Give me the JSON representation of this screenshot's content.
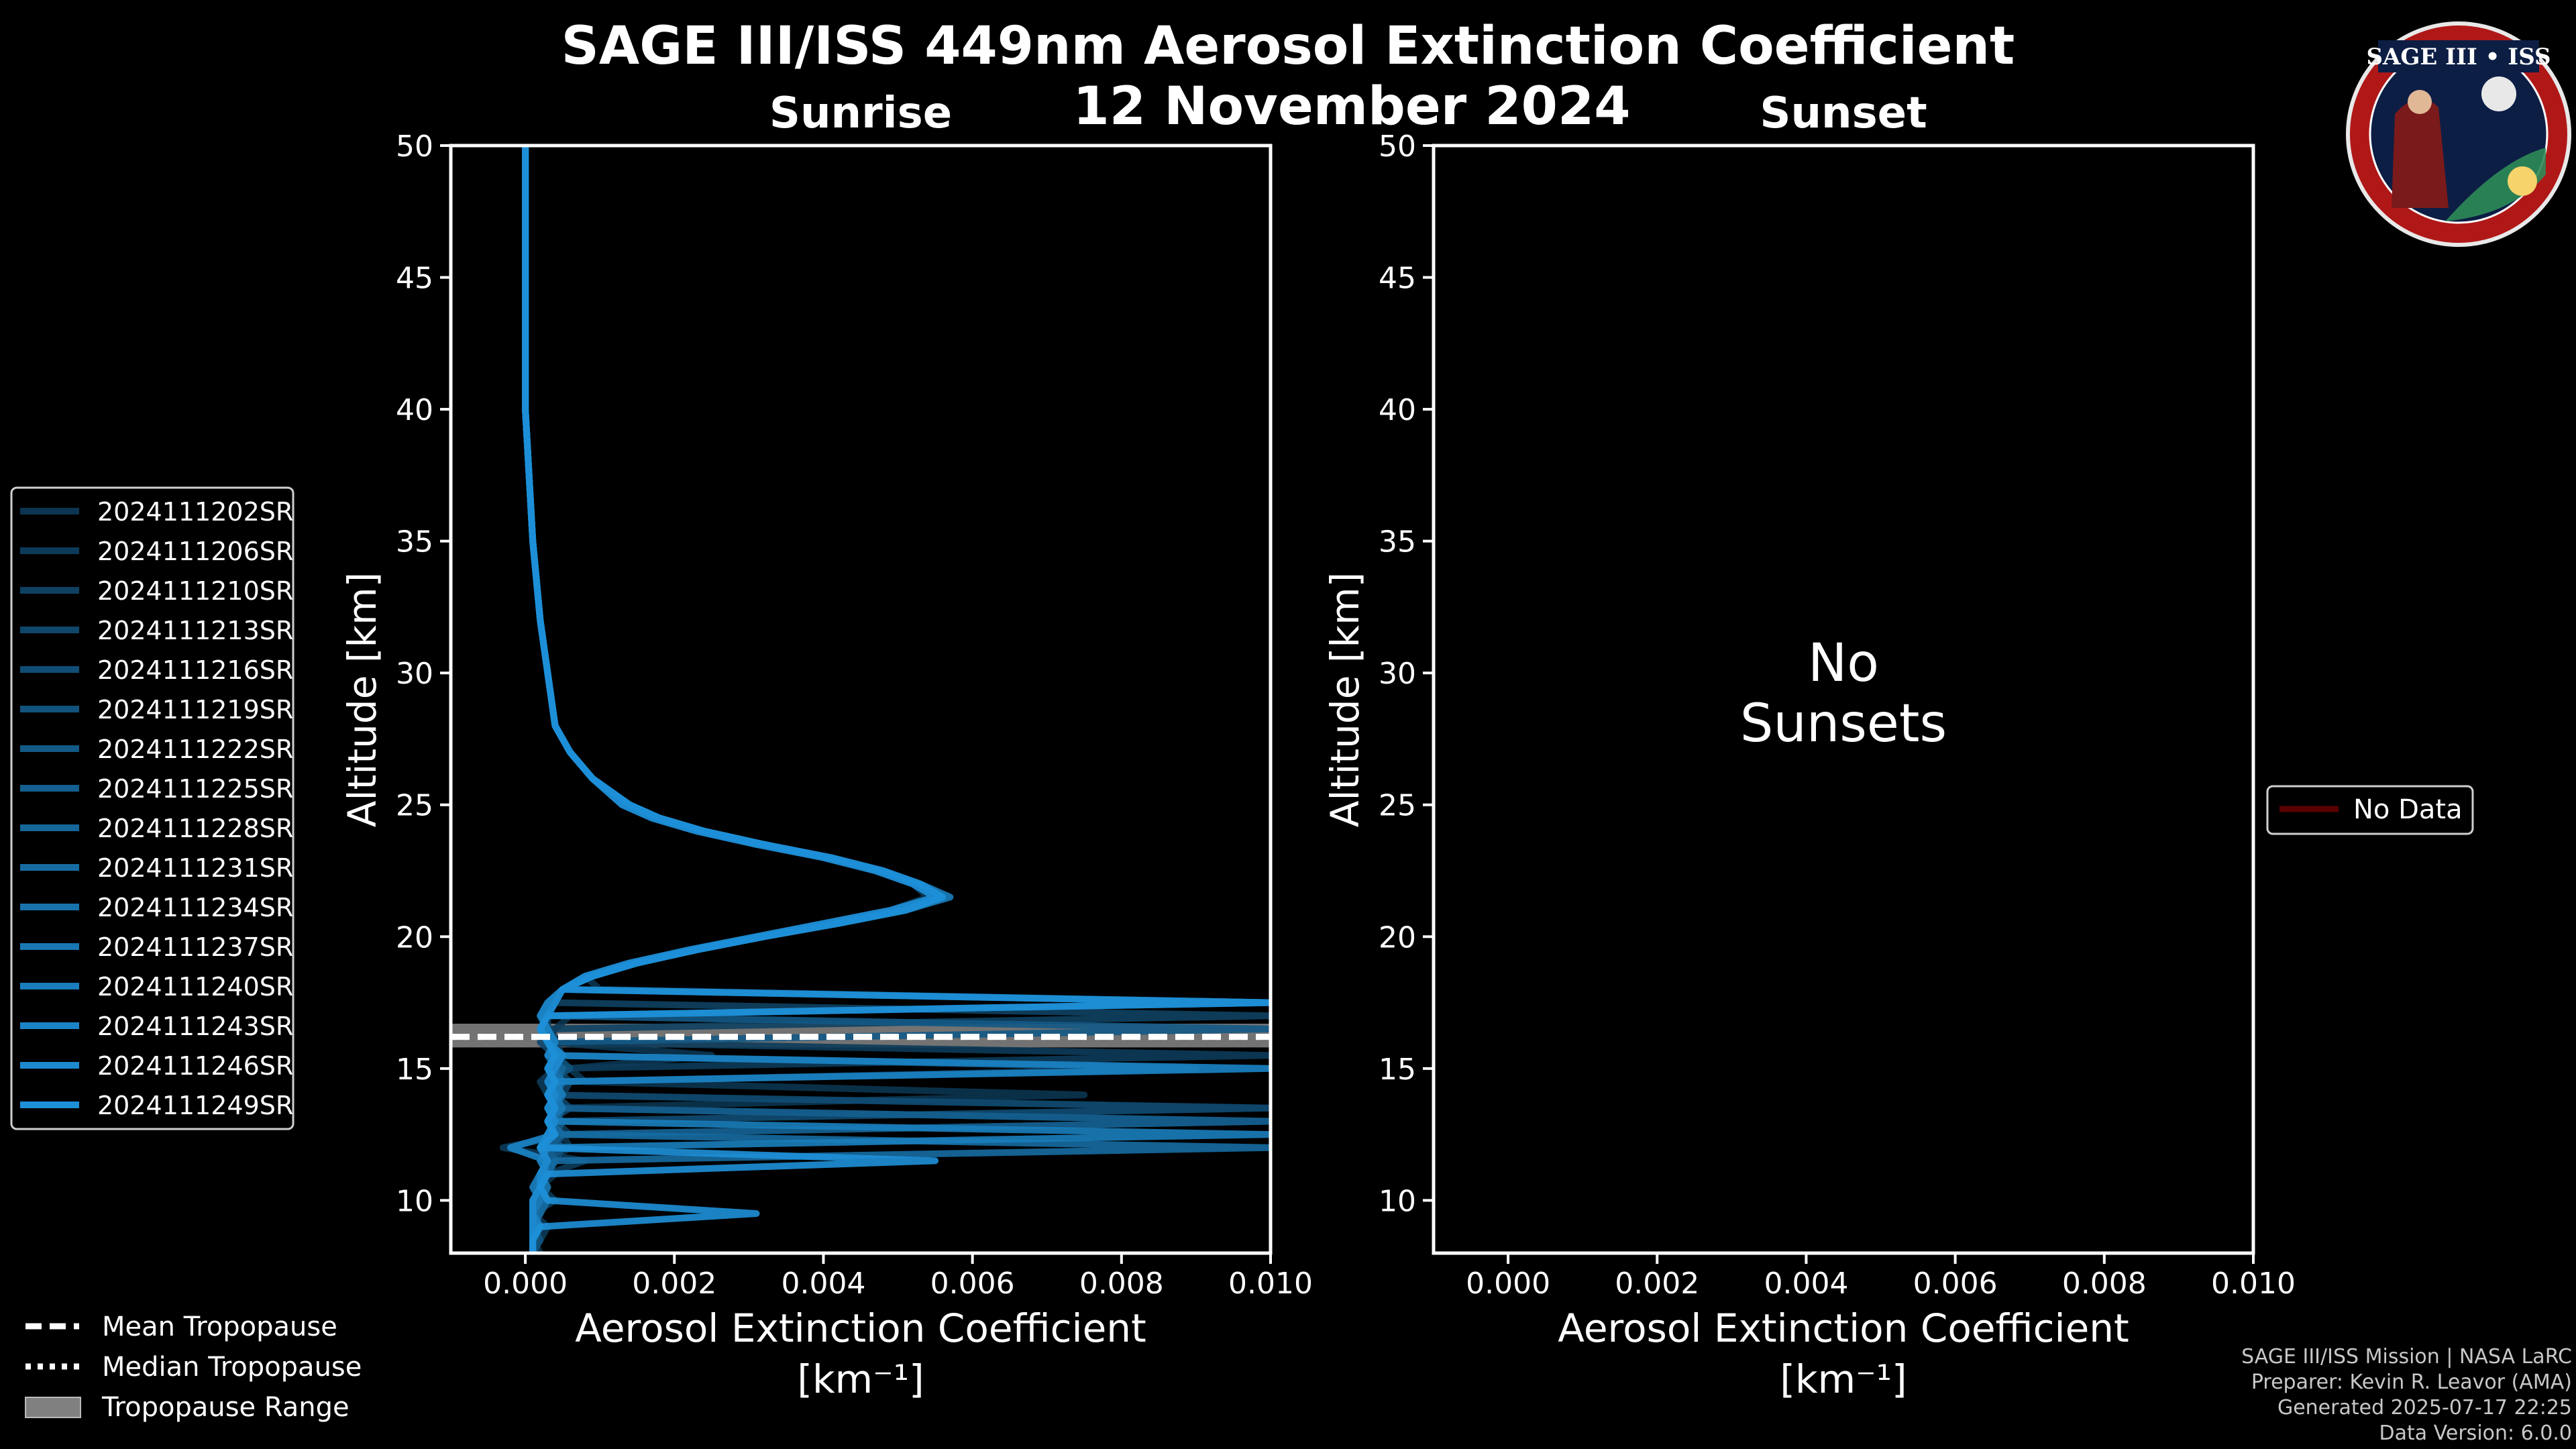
{
  "chart_data": [
    {
      "type": "line",
      "panel": "sunrise",
      "suptitle": "SAGE III/ISS 449nm Aerosol Extinction Coefficient",
      "subtitle": "12 November 2024",
      "title": "Sunrise",
      "xlabel": "Aerosol Extinction Coefficient",
      "xunit": "[km⁻¹]",
      "ylabel": "Altitude [km]",
      "xlim": [
        -0.001,
        0.01
      ],
      "ylim": [
        8,
        50
      ],
      "xticks": [
        "0.000",
        "0.002",
        "0.004",
        "0.006",
        "0.008",
        "0.010"
      ],
      "yticks": [
        "10",
        "15",
        "20",
        "25",
        "30",
        "35",
        "40",
        "45",
        "50"
      ],
      "tropopause": {
        "mean": 16.2,
        "median": 16.2,
        "range": [
          15.8,
          16.7
        ]
      },
      "altitude": [
        50,
        45,
        40,
        35,
        32,
        30,
        28,
        27,
        26,
        25,
        24.5,
        24,
        23.5,
        23,
        22.5,
        22,
        21.5,
        21,
        20.5,
        20,
        19.5,
        19,
        18.5,
        18,
        17.5,
        17,
        16.5,
        16,
        15.5,
        15,
        14.5,
        14,
        13.5,
        13,
        12.5,
        12,
        11.5,
        11,
        10.5,
        10,
        9.5,
        9,
        8.5,
        8
      ],
      "series": [
        {
          "name": "2024111202SR",
          "values": [
            0.0,
            0.0,
            0.0,
            0.0001,
            0.0002,
            0.0003,
            0.0004,
            0.0006,
            0.0009,
            0.0013,
            0.0017,
            0.0023,
            0.0031,
            0.004,
            0.0047,
            0.0052,
            0.0054,
            0.0049,
            0.004,
            0.0031,
            0.0022,
            0.0014,
            0.0008,
            0.001,
            0.01,
            0.0006,
            0.0004,
            0.0003,
            0.0025,
            0.0006,
            0.0008,
            0.0075,
            0.0004,
            0.01,
            0.0005,
            0.0006,
            0.0003,
            0.0004,
            0.0002,
            0.0003,
            0.0001,
            0.0002,
            0.0001,
            0.0002
          ]
        },
        {
          "name": "2024111206SR",
          "values": [
            0.0,
            0.0,
            0.0,
            0.0001,
            0.0002,
            0.0003,
            0.0004,
            0.0006,
            0.0009,
            0.0014,
            0.0018,
            0.0024,
            0.0032,
            0.0041,
            0.0048,
            0.0053,
            0.0056,
            0.005,
            0.0041,
            0.0032,
            0.0023,
            0.0015,
            0.0009,
            0.0005,
            0.0004,
            0.0003,
            0.0002,
            0.0005,
            0.01,
            0.0004,
            0.0002,
            0.0003,
            0.0005,
            0.0004,
            0.0006,
            -0.0003,
            0.0008,
            0.0003,
            0.0002,
            0.0004,
            0.0001,
            0.0003,
            0.0002,
            0.0001
          ]
        },
        {
          "name": "2024111210SR",
          "values": [
            0.0,
            0.0,
            0.0,
            0.0001,
            0.0002,
            0.0003,
            0.0004,
            0.0006,
            0.0009,
            0.0013,
            0.0017,
            0.0023,
            0.0031,
            0.004,
            0.0047,
            0.0052,
            0.0055,
            0.0049,
            0.004,
            0.0031,
            0.0022,
            0.0014,
            0.0008,
            0.0005,
            0.0004,
            0.01,
            0.0003,
            0.0004,
            0.0005,
            0.0004,
            0.0006,
            0.0005,
            0.0003,
            0.0004,
            0.0003,
            0.0002,
            0.0003,
            0.0002,
            0.0001,
            0.0002,
            0.0001,
            0.0001,
            0.0002,
            0.0001
          ]
        },
        {
          "name": "2024111213SR",
          "values": [
            0.0,
            0.0,
            0.0,
            0.0001,
            0.0002,
            0.0003,
            0.0004,
            0.0006,
            0.0009,
            0.0014,
            0.0018,
            0.0024,
            0.0032,
            0.0041,
            0.0048,
            0.0053,
            0.0057,
            0.0051,
            0.0042,
            0.0032,
            0.0023,
            0.0015,
            0.0009,
            0.0005,
            0.0004,
            0.0003,
            0.0003,
            0.0002,
            0.0004,
            0.009,
            0.0005,
            0.0004,
            0.0006,
            0.0003,
            0.0005,
            0.0004,
            0.0003,
            0.0002,
            0.0003,
            0.0002,
            0.0001,
            0.0002,
            0.0001,
            0.0001
          ]
        },
        {
          "name": "2024111216SR",
          "values": [
            0.0,
            0.0,
            0.0,
            0.0001,
            0.0002,
            0.0003,
            0.0004,
            0.0006,
            0.0009,
            0.0013,
            0.0017,
            0.0023,
            0.0031,
            0.004,
            0.0047,
            0.0052,
            0.0055,
            0.005,
            0.0041,
            0.0031,
            0.0022,
            0.0015,
            0.0009,
            0.0005,
            0.0003,
            0.0002,
            0.0003,
            0.0004,
            0.0003,
            0.0005,
            0.0004,
            0.0003,
            0.01,
            0.0004,
            0.0003,
            0.0005,
            0.0004,
            0.0002,
            0.0003,
            0.0002,
            0.0001,
            0.0002,
            0.0001,
            0.0001
          ]
        },
        {
          "name": "2024111219SR",
          "values": [
            0.0,
            0.0,
            0.0,
            0.0001,
            0.0002,
            0.0003,
            0.0004,
            0.0006,
            0.0009,
            0.0014,
            0.0018,
            0.0024,
            0.0032,
            0.004,
            0.0047,
            0.0052,
            0.0056,
            0.005,
            0.0041,
            0.0032,
            0.0023,
            0.0015,
            0.0009,
            0.0005,
            0.0004,
            0.0003,
            0.0002,
            0.0003,
            0.0004,
            0.0006,
            0.0003,
            0.0004,
            0.0005,
            0.0004,
            0.0003,
            0.0005,
            0.0003,
            0.0002,
            0.0003,
            0.0002,
            0.0001,
            0.0001,
            0.0002,
            0.0001
          ]
        },
        {
          "name": "2024111222SR",
          "values": [
            0.0,
            0.0,
            0.0,
            0.0001,
            0.0002,
            0.0003,
            0.0004,
            0.0006,
            0.0009,
            0.0013,
            0.0017,
            0.0023,
            0.0031,
            0.004,
            0.0047,
            0.0052,
            0.0055,
            0.0049,
            0.004,
            0.0031,
            0.0022,
            0.0014,
            0.0008,
            0.0005,
            0.0004,
            0.0003,
            0.01,
            0.0003,
            0.0004,
            0.0003,
            0.0005,
            0.0004,
            0.0003,
            0.0005,
            0.0004,
            0.0003,
            0.0002,
            0.0003,
            0.0002,
            0.0001,
            0.0002,
            0.0001,
            0.0001,
            0.0001
          ]
        },
        {
          "name": "2024111225SR",
          "values": [
            0.0,
            0.0,
            0.0,
            0.0001,
            0.0002,
            0.0003,
            0.0004,
            0.0006,
            0.0009,
            0.0014,
            0.0018,
            0.0024,
            0.0032,
            0.0041,
            0.0048,
            0.0053,
            0.0056,
            0.0051,
            0.0042,
            0.0032,
            0.0023,
            0.0015,
            0.0009,
            0.0005,
            0.0004,
            0.0003,
            0.0002,
            0.0003,
            0.0005,
            0.0004,
            0.0003,
            0.0005,
            0.0004,
            0.01,
            0.0005,
            0.0003,
            0.0004,
            0.0002,
            0.0003,
            0.0002,
            0.0001,
            0.0002,
            0.0001,
            0.0001
          ]
        },
        {
          "name": "2024111228SR",
          "values": [
            0.0,
            0.0,
            0.0,
            0.0001,
            0.0002,
            0.0003,
            0.0004,
            0.0006,
            0.0009,
            0.0013,
            0.0017,
            0.0023,
            0.0031,
            0.004,
            0.0047,
            0.0052,
            0.0055,
            0.005,
            0.0041,
            0.0031,
            0.0022,
            0.0014,
            0.0008,
            0.0005,
            0.0004,
            0.0003,
            0.0002,
            0.0004,
            0.0003,
            0.0005,
            0.0004,
            0.0003,
            0.0005,
            0.0004,
            0.0003,
            0.0002,
            0.0003,
            0.0002,
            0.0001,
            0.0002,
            0.0001,
            0.0001,
            0.0001,
            0.0001
          ]
        },
        {
          "name": "2024111231SR",
          "values": [
            0.0,
            0.0,
            0.0,
            0.0001,
            0.0002,
            0.0003,
            0.0004,
            0.0006,
            0.0009,
            0.0014,
            0.0018,
            0.0024,
            0.0032,
            0.004,
            0.0047,
            0.0052,
            0.0056,
            0.005,
            0.0041,
            0.0032,
            0.0023,
            0.0015,
            0.0009,
            0.0005,
            0.0003,
            0.0002,
            0.0003,
            0.0004,
            0.0003,
            0.0004,
            0.0005,
            0.0003,
            0.0004,
            0.0003,
            0.0005,
            0.01,
            0.0004,
            0.0003,
            0.0002,
            0.0003,
            0.0002,
            0.0001,
            0.0001,
            0.0001
          ]
        },
        {
          "name": "2024111234SR",
          "values": [
            0.0,
            0.0,
            0.0,
            0.0001,
            0.0002,
            0.0003,
            0.0004,
            0.0006,
            0.0009,
            0.0013,
            0.0017,
            0.0023,
            0.0031,
            0.004,
            0.0047,
            0.0052,
            0.0055,
            0.0049,
            0.004,
            0.0031,
            0.0022,
            0.0014,
            0.0008,
            0.0005,
            0.0004,
            0.0003,
            0.0002,
            0.0003,
            0.0004,
            0.0003,
            0.0005,
            0.0004,
            0.0003,
            0.0004,
            0.0003,
            0.0002,
            0.0003,
            0.0002,
            0.0003,
            0.0002,
            0.0001,
            0.0001,
            0.0001,
            0.0001
          ]
        },
        {
          "name": "2024111237SR",
          "values": [
            0.0,
            0.0,
            0.0,
            0.0001,
            0.0002,
            0.0003,
            0.0004,
            0.0006,
            0.0009,
            0.0014,
            0.0018,
            0.0024,
            0.0032,
            0.0041,
            0.0048,
            0.0053,
            0.0057,
            0.0051,
            0.0042,
            0.0032,
            0.0023,
            0.0015,
            0.0009,
            0.0005,
            0.01,
            0.0003,
            0.0002,
            0.0003,
            0.0005,
            0.0004,
            0.0003,
            0.0004,
            0.0005,
            0.0003,
            0.0004,
            0.0002,
            0.0003,
            0.0002,
            0.0001,
            0.0002,
            0.0001,
            0.0001,
            0.0001,
            0.0001
          ]
        },
        {
          "name": "2024111240SR",
          "values": [
            0.0,
            0.0,
            0.0,
            0.0001,
            0.0002,
            0.0003,
            0.0004,
            0.0006,
            0.0009,
            0.0013,
            0.0017,
            0.0023,
            0.0031,
            0.004,
            0.0047,
            0.0052,
            0.0055,
            0.005,
            0.0041,
            0.0031,
            0.0022,
            0.0014,
            0.0008,
            0.0005,
            0.0004,
            0.0003,
            0.0002,
            0.0003,
            0.0004,
            0.0003,
            0.0004,
            0.0005,
            0.0003,
            0.0004,
            0.01,
            0.0003,
            0.0002,
            0.0003,
            0.0002,
            0.0001,
            0.0001,
            0.0001,
            0.0001,
            0.0001
          ]
        },
        {
          "name": "2024111243SR",
          "values": [
            0.0,
            0.0,
            0.0,
            0.0001,
            0.0002,
            0.0003,
            0.0004,
            0.0006,
            0.0009,
            0.0014,
            0.0018,
            0.0024,
            0.0032,
            0.004,
            0.0047,
            0.0052,
            0.0056,
            0.005,
            0.0041,
            0.0032,
            0.0023,
            0.0015,
            0.0009,
            0.0005,
            0.0003,
            0.0002,
            0.0003,
            0.0004,
            0.0003,
            0.01,
            0.0004,
            0.0003,
            0.0004,
            0.0003,
            0.0004,
            -0.0002,
            0.0003,
            0.0002,
            0.0002,
            0.0001,
            0.0001,
            0.0002,
            0.0001,
            0.0001
          ]
        },
        {
          "name": "2024111246SR",
          "values": [
            0.0,
            0.0,
            0.0,
            0.0001,
            0.0002,
            0.0003,
            0.0004,
            0.0006,
            0.0009,
            0.0013,
            0.0017,
            0.0023,
            0.0031,
            0.004,
            0.0047,
            0.0052,
            0.0055,
            0.0049,
            0.004,
            0.0031,
            0.0022,
            0.0014,
            0.0008,
            0.0005,
            0.0004,
            0.0003,
            0.0002,
            0.0003,
            0.0005,
            0.0004,
            0.0003,
            0.0004,
            0.0003,
            0.0004,
            0.0003,
            0.0002,
            0.0003,
            0.0002,
            0.0002,
            0.0001,
            0.0001,
            0.0001,
            0.0001,
            0.0001
          ]
        },
        {
          "name": "2024111249SR",
          "values": [
            0.0,
            0.0,
            0.0,
            0.0001,
            0.0002,
            0.0003,
            0.0004,
            0.0006,
            0.0009,
            0.0014,
            0.0018,
            0.0024,
            0.0032,
            0.0041,
            0.0048,
            0.0053,
            0.0056,
            0.0051,
            0.0042,
            0.0032,
            0.0023,
            0.0015,
            0.0009,
            0.0005,
            0.01,
            0.0003,
            0.0002,
            0.0003,
            0.0004,
            0.0003,
            0.0004,
            0.0003,
            0.0004,
            0.0003,
            0.0004,
            0.0002,
            0.0055,
            0.0003,
            0.0002,
            0.0003,
            0.0031,
            0.0002,
            0.0001,
            0.0001
          ]
        }
      ],
      "legend": {
        "placement": "left",
        "entries": [
          "2024111202SR",
          "2024111206SR",
          "2024111210SR",
          "2024111213SR",
          "2024111216SR",
          "2024111219SR",
          "2024111222SR",
          "2024111225SR",
          "2024111228SR",
          "2024111231SR",
          "2024111234SR",
          "2024111237SR",
          "2024111240SR",
          "2024111243SR",
          "2024111246SR",
          "2024111249SR"
        ]
      },
      "tropopause_legend": [
        "Mean Tropopause",
        "Median Tropopause",
        "Tropopause Range"
      ]
    },
    {
      "type": "line",
      "panel": "sunset",
      "title": "Sunset",
      "xlabel": "Aerosol Extinction Coefficient",
      "xunit": "[km⁻¹]",
      "ylabel": "Altitude [km]",
      "xlim": [
        -0.001,
        0.01
      ],
      "ylim": [
        8,
        50
      ],
      "xticks": [
        "0.000",
        "0.002",
        "0.004",
        "0.006",
        "0.008",
        "0.010"
      ],
      "yticks": [
        "10",
        "15",
        "20",
        "25",
        "30",
        "35",
        "40",
        "45",
        "50"
      ],
      "series": [],
      "annotation": [
        "No",
        "Sunsets"
      ],
      "legend": {
        "placement": "right",
        "entries": [
          "No Data"
        ]
      }
    }
  ],
  "colors": {
    "series_dark": "#0b3550",
    "series_light": "#1e90d8",
    "no_data": "#5a0000",
    "tropopause_range": "#808080",
    "axes": "#ffffff"
  },
  "logo": {
    "text": "SAGE III • ISS",
    "icon": "sage-iii-iss-mission-patch-icon"
  },
  "footer": {
    "line1": "SAGE III/ISS Mission | NASA LaRC",
    "line2": "Preparer: Kevin R. Leavor (AMA)",
    "line3": "Generated 2025-07-17 22:25",
    "line4": "Data Version: 6.0.0"
  }
}
